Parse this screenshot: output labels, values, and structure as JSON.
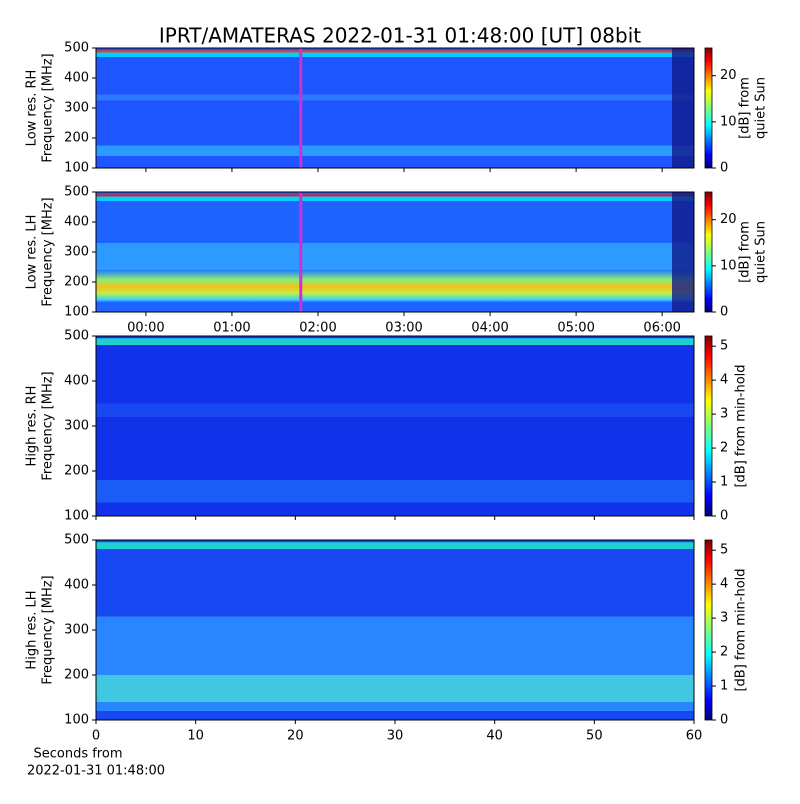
{
  "title": "IPRT/AMATERAS 2022-01-31 01:48:00 [UT]   08bit",
  "xlabel": [
    "Seconds from",
    "2022-01-31 01:48:00"
  ],
  "chart_data": [
    {
      "type": "heatmap",
      "colormap": "jet",
      "ylabel": [
        "Low res. RH",
        "Frequency [MHz]"
      ],
      "ylim": [
        100,
        500
      ],
      "yticks": [
        100,
        200,
        300,
        400,
        500
      ],
      "xlim": [
        -0.58,
        6.37
      ],
      "vline": {
        "x": 1.8,
        "color": "#d030d0"
      },
      "colorbar": {
        "label": [
          "[dB] from",
          "quiet Sun"
        ],
        "lim": [
          0,
          26
        ],
        "ticks": [
          0,
          10,
          20
        ]
      }
    },
    {
      "type": "heatmap",
      "colormap": "jet",
      "ylabel": [
        "Low res. LH",
        "Frequency [MHz]"
      ],
      "ylim": [
        100,
        500
      ],
      "yticks": [
        100,
        200,
        300,
        400,
        500
      ],
      "xlim": [
        -0.58,
        6.37
      ],
      "xticks": [
        {
          "value": 0,
          "label": "00:00"
        },
        {
          "value": 1,
          "label": "01:00"
        },
        {
          "value": 2,
          "label": "02:00"
        },
        {
          "value": 3,
          "label": "03:00"
        },
        {
          "value": 4,
          "label": "04:00"
        },
        {
          "value": 5,
          "label": "05:00"
        },
        {
          "value": 6,
          "label": "06:00"
        }
      ],
      "vline": {
        "x": 1.8,
        "color": "#d030d0"
      },
      "colorbar": {
        "label": [
          "[dB] from",
          "quiet Sun"
        ],
        "lim": [
          0,
          26
        ],
        "ticks": [
          0,
          10,
          20
        ]
      }
    },
    {
      "type": "heatmap",
      "colormap": "jet",
      "ylabel": [
        "High res. RH",
        "Frequency [MHz]"
      ],
      "ylim": [
        100,
        500
      ],
      "yticks": [
        100,
        200,
        300,
        400,
        500
      ],
      "xlim": [
        0,
        60
      ],
      "colorbar": {
        "label": [
          "[dB] from min-hold"
        ],
        "lim": [
          0,
          5.3
        ],
        "ticks": [
          0,
          1,
          2,
          3,
          4,
          5
        ]
      }
    },
    {
      "type": "heatmap",
      "colormap": "jet",
      "ylabel": [
        "High res. LH",
        "Frequency [MHz]"
      ],
      "ylim": [
        100,
        500
      ],
      "yticks": [
        100,
        200,
        300,
        400,
        500
      ],
      "xlim": [
        0,
        60
      ],
      "xticks": [
        0,
        10,
        20,
        30,
        40,
        50,
        60
      ],
      "colorbar": {
        "label": [
          "[dB] from min-hold"
        ],
        "lim": [
          0,
          5.3
        ],
        "ticks": [
          0,
          1,
          2,
          3,
          4,
          5
        ]
      }
    }
  ]
}
